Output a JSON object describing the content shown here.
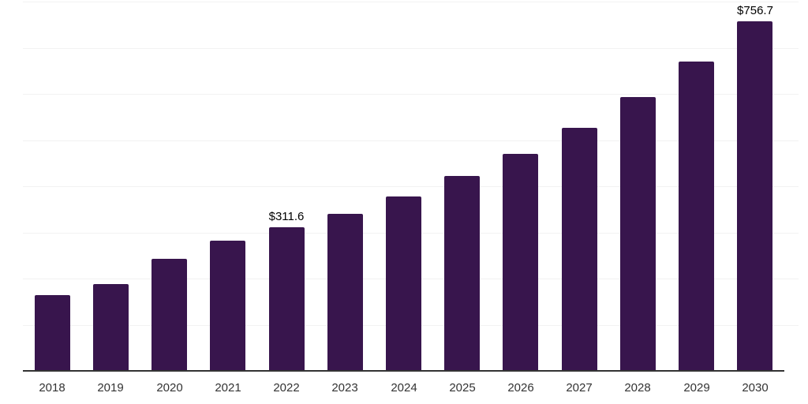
{
  "chart_data": {
    "type": "bar",
    "title": "",
    "xlabel": "",
    "ylabel": "",
    "categories": [
      "2018",
      "2019",
      "2020",
      "2021",
      "2022",
      "2023",
      "2024",
      "2025",
      "2026",
      "2027",
      "2028",
      "2029",
      "2030"
    ],
    "values": [
      164.0,
      187.5,
      242.0,
      282.0,
      311.6,
      340.4,
      377.6,
      421.6,
      469.6,
      526.4,
      593.3,
      669.6,
      756.7
    ],
    "data_labels": [
      null,
      null,
      null,
      null,
      "$311.6",
      null,
      null,
      null,
      null,
      null,
      null,
      null,
      "$756.7"
    ],
    "ylim": [
      0,
      800
    ],
    "gridline_step": 100,
    "grid": "horizontal",
    "legend": "none",
    "y_tick_labels": "none",
    "bar_color": "#38154d",
    "axis_line_color": "#333333",
    "gridline_color": "#f2f2f2",
    "tick_label_color": "#333333",
    "data_label_color": "#000000",
    "background_color": "#ffffff"
  }
}
